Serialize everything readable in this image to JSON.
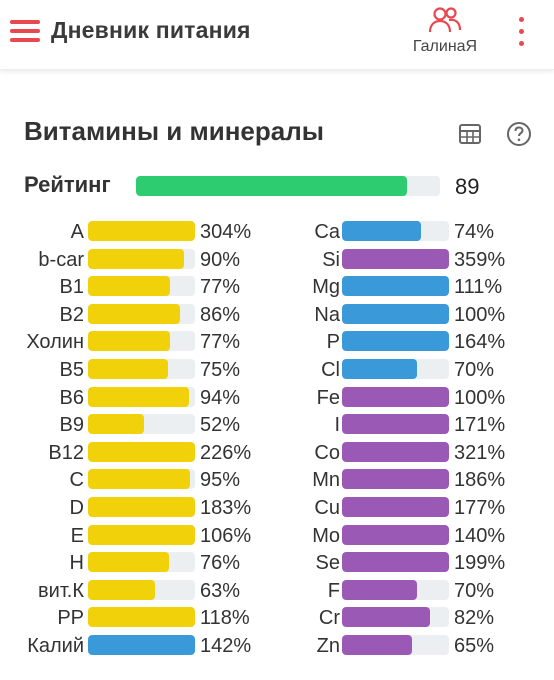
{
  "app": {
    "title": "Дневник питания",
    "profile_name": "ГалинаЯ"
  },
  "colors": {
    "accent": "#e8484f",
    "vitamin": "#f1d20a",
    "mineral_blue": "#3a9ad9",
    "mineral_purple": "#9b59b6",
    "rating": "#2ecc71",
    "track": "#eceff2"
  },
  "section": {
    "title": "Витамины и минералы"
  },
  "rating": {
    "label": "Рейтинг",
    "value": "89",
    "percent": 89
  },
  "left": [
    {
      "label": "A",
      "pct": "304%",
      "value": 304,
      "color": "#f1d20a"
    },
    {
      "label": "b-car",
      "pct": "90%",
      "value": 90,
      "color": "#f1d20a"
    },
    {
      "label": "B1",
      "pct": "77%",
      "value": 77,
      "color": "#f1d20a"
    },
    {
      "label": "B2",
      "pct": "86%",
      "value": 86,
      "color": "#f1d20a"
    },
    {
      "label": "Холин",
      "pct": "77%",
      "value": 77,
      "color": "#f1d20a"
    },
    {
      "label": "B5",
      "pct": "75%",
      "value": 75,
      "color": "#f1d20a"
    },
    {
      "label": "B6",
      "pct": "94%",
      "value": 94,
      "color": "#f1d20a"
    },
    {
      "label": "B9",
      "pct": "52%",
      "value": 52,
      "color": "#f1d20a"
    },
    {
      "label": "B12",
      "pct": "226%",
      "value": 226,
      "color": "#f1d20a"
    },
    {
      "label": "C",
      "pct": "95%",
      "value": 95,
      "color": "#f1d20a"
    },
    {
      "label": "D",
      "pct": "183%",
      "value": 183,
      "color": "#f1d20a"
    },
    {
      "label": "E",
      "pct": "106%",
      "value": 106,
      "color": "#f1d20a"
    },
    {
      "label": "H",
      "pct": "76%",
      "value": 76,
      "color": "#f1d20a"
    },
    {
      "label": "вит.К",
      "pct": "63%",
      "value": 63,
      "color": "#f1d20a"
    },
    {
      "label": "PP",
      "pct": "118%",
      "value": 118,
      "color": "#f1d20a"
    },
    {
      "label": "Калий",
      "pct": "142%",
      "value": 142,
      "color": "#3a9ad9"
    }
  ],
  "right": [
    {
      "label": "Ca",
      "pct": "74%",
      "value": 74,
      "color": "#3a9ad9"
    },
    {
      "label": "Si",
      "pct": "359%",
      "value": 359,
      "color": "#9b59b6"
    },
    {
      "label": "Mg",
      "pct": "111%",
      "value": 111,
      "color": "#3a9ad9"
    },
    {
      "label": "Na",
      "pct": "100%",
      "value": 100,
      "color": "#3a9ad9"
    },
    {
      "label": "P",
      "pct": "164%",
      "value": 164,
      "color": "#3a9ad9"
    },
    {
      "label": "Cl",
      "pct": "70%",
      "value": 70,
      "color": "#3a9ad9"
    },
    {
      "label": "Fe",
      "pct": "100%",
      "value": 100,
      "color": "#9b59b6"
    },
    {
      "label": "I",
      "pct": "171%",
      "value": 171,
      "color": "#9b59b6"
    },
    {
      "label": "Co",
      "pct": "321%",
      "value": 321,
      "color": "#9b59b6"
    },
    {
      "label": "Mn",
      "pct": "186%",
      "value": 186,
      "color": "#9b59b6"
    },
    {
      "label": "Cu",
      "pct": "177%",
      "value": 177,
      "color": "#9b59b6"
    },
    {
      "label": "Mo",
      "pct": "140%",
      "value": 140,
      "color": "#9b59b6"
    },
    {
      "label": "Se",
      "pct": "199%",
      "value": 199,
      "color": "#9b59b6"
    },
    {
      "label": "F",
      "pct": "70%",
      "value": 70,
      "color": "#9b59b6"
    },
    {
      "label": "Cr",
      "pct": "82%",
      "value": 82,
      "color": "#9b59b6"
    },
    {
      "label": "Zn",
      "pct": "65%",
      "value": 65,
      "color": "#9b59b6"
    }
  ]
}
